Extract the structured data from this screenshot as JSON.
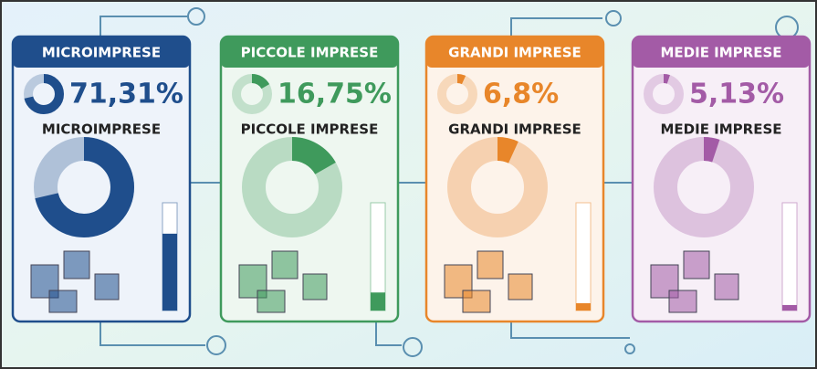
{
  "cards": [
    {
      "title": "MICROIMPRESE",
      "value": 71.31,
      "label": "71,31%",
      "subtitle": "MICROIMPRESE",
      "color": "#1f4e8c",
      "tint": "#eef3fa"
    },
    {
      "title": "PICCOLE IMPRESE",
      "value": 16.75,
      "label": "16,75%",
      "subtitle": "PICCOLE IMPRESE",
      "color": "#3f9a5c",
      "tint": "#eef7f0"
    },
    {
      "title": "GRANDI IMPRESE",
      "value": 6.8,
      "label": "6,8%",
      "subtitle": "GRANDI IMPRESE",
      "color": "#e8862a",
      "tint": "#fdf3ea"
    },
    {
      "title": "MEDIE IMPRESE",
      "value": 5.13,
      "label": "5,13%",
      "subtitle": "MEDIE IMPRESE",
      "color": "#a35ba6",
      "tint": "#f7eff7"
    }
  ]
}
